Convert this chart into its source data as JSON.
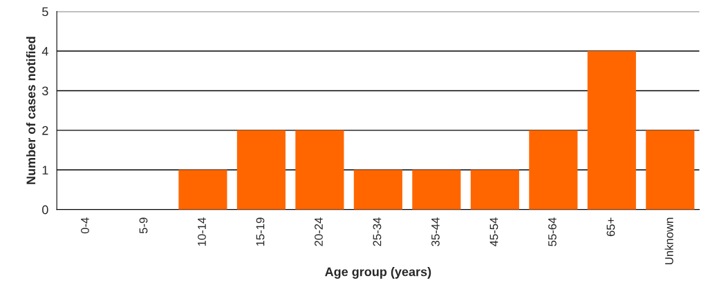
{
  "chart_data": {
    "type": "bar",
    "xlabel": "Age group (years)",
    "ylabel": "Number of cases notified",
    "categories": [
      "0-4",
      "5-9",
      "10-14",
      "15-19",
      "20-24",
      "25-34",
      "35-44",
      "45-54",
      "55-64",
      "65+",
      "Unknown"
    ],
    "values": [
      0,
      0,
      1,
      2,
      2,
      1,
      1,
      1,
      2,
      4,
      2
    ],
    "color": "#ff6600",
    "ylim": [
      0,
      5
    ],
    "yticks": [
      0,
      1,
      2,
      3,
      4,
      5
    ],
    "grid": "y"
  }
}
